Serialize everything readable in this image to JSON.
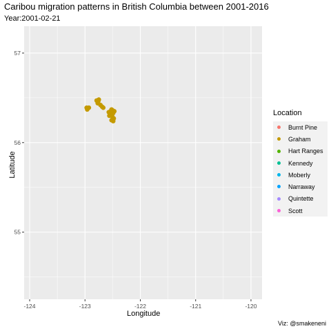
{
  "chart_data": {
    "type": "scatter",
    "title": "Caribou migration patterns in British Columbia between 2001-2016",
    "subtitle": "Year:2001-02-21",
    "xlabel": "Longitude",
    "ylabel": "Latitude",
    "xlim": [
      -124.1,
      -119.8
    ],
    "ylim": [
      54.25,
      57.3
    ],
    "xticks": [
      -124,
      -123,
      -122,
      -121,
      -120
    ],
    "yticks": [
      55,
      56,
      57
    ],
    "grid": true,
    "legend_placement": "right",
    "legend_title": "Location",
    "series": [
      {
        "name": "Burnt Pine",
        "color": "#F8766D",
        "points": []
      },
      {
        "name": "Graham",
        "color": "#C49A00",
        "points": [
          [
            -122.97,
            56.39
          ],
          [
            -122.95,
            56.38
          ],
          [
            -122.93,
            56.39
          ],
          [
            -122.96,
            56.37
          ],
          [
            -122.79,
            56.47
          ],
          [
            -122.76,
            56.46
          ],
          [
            -122.75,
            56.48
          ],
          [
            -122.77,
            56.44
          ],
          [
            -122.72,
            56.42
          ],
          [
            -122.69,
            56.4
          ],
          [
            -122.67,
            56.39
          ],
          [
            -122.57,
            56.34
          ],
          [
            -122.55,
            56.32
          ],
          [
            -122.54,
            56.35
          ],
          [
            -122.52,
            56.37
          ],
          [
            -122.5,
            56.36
          ],
          [
            -122.53,
            56.31
          ],
          [
            -122.51,
            56.3
          ],
          [
            -122.49,
            56.33
          ],
          [
            -122.47,
            56.35
          ],
          [
            -122.5,
            56.28
          ],
          [
            -122.48,
            56.27
          ],
          [
            -122.49,
            56.24
          ],
          [
            -122.52,
            56.25
          ],
          [
            -122.56,
            56.3
          ]
        ]
      },
      {
        "name": "Hart Ranges",
        "color": "#53B400",
        "points": []
      },
      {
        "name": "Kennedy",
        "color": "#00C094",
        "points": []
      },
      {
        "name": "Moberly",
        "color": "#00B6EB",
        "points": []
      },
      {
        "name": "Narraway",
        "color": "#06A4FF",
        "points": []
      },
      {
        "name": "Quintette",
        "color": "#A58AFF",
        "points": []
      },
      {
        "name": "Scott",
        "color": "#FB61D7",
        "points": []
      }
    ],
    "caption": "Viz: @smakeneni"
  }
}
